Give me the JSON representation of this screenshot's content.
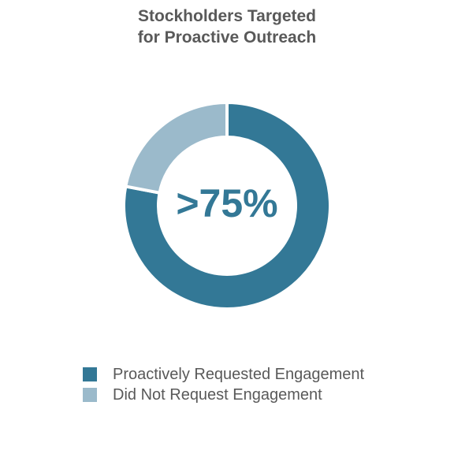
{
  "chart_data": {
    "type": "pie",
    "variant": "donut",
    "title_lines": [
      "Stockholders Targeted",
      "for Proactive Outreach"
    ],
    "center_label": ">75%",
    "categories": [
      "Proactively Requested Engagement",
      "Did Not Request Engagement"
    ],
    "values": [
      78,
      22
    ],
    "colors": [
      "#337896",
      "#9bbacb"
    ],
    "center_label_color": "#337896",
    "start_angle_deg": 0,
    "direction": "clockwise",
    "legend": "bottom"
  }
}
